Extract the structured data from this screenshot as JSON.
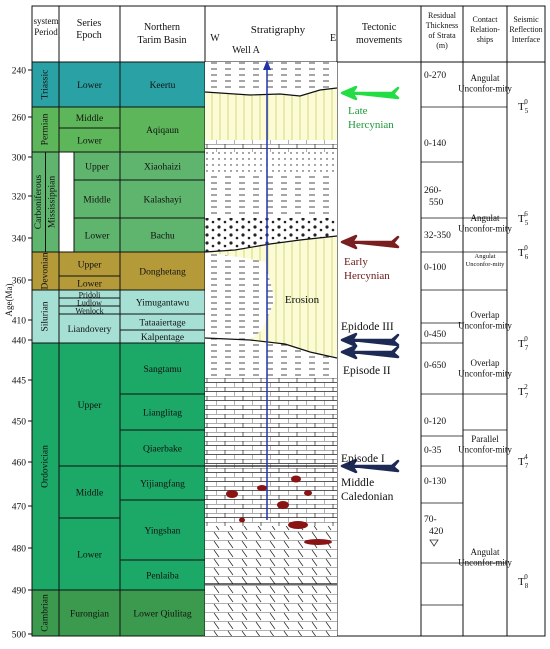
{
  "headers": {
    "system": "system Period",
    "series": "Series Epoch",
    "basin": "Northern Tarim Basin",
    "strat_title": "Stratigraphy",
    "strat_w": "W",
    "strat_e": "E",
    "well": "Well A",
    "tectonic": "Tectonic movements",
    "thickness": "Residual Thickness of Strata (m)",
    "contact": "Contact Relation-ships",
    "seismic": "Seismic Reflection Interface"
  },
  "age_axis": {
    "label": "Age(Ma)",
    "ticks": [
      "240",
      "260",
      "300",
      "320",
      "340",
      "360",
      "410",
      "440",
      "445",
      "450",
      "460",
      "470",
      "480",
      "490",
      "500"
    ]
  },
  "systems": [
    {
      "id": "triassic",
      "label": "Triassic",
      "color": "#2aa1a4"
    },
    {
      "id": "permian",
      "label": "Permian",
      "color": "#5eb65a"
    },
    {
      "id": "carboniferous",
      "label": "Carboniferous",
      "color": "#5fb56d"
    },
    {
      "id": "mississippian",
      "label": "Mississippian",
      "color": "#5fb56d"
    },
    {
      "id": "devonian",
      "label": "Devonian",
      "color": "#b59a39"
    },
    {
      "id": "silurian",
      "label": "Silurian",
      "color": "#a6dfd4"
    },
    {
      "id": "ordovician",
      "label": "Ordovician",
      "color": "#1ca867"
    },
    {
      "id": "cambrian",
      "label": "Cambrian",
      "color": "#3c9a4e"
    }
  ],
  "series": [
    "Lower",
    "Middle",
    "Lower",
    "Upper",
    "Middle",
    "Lower",
    "Upper",
    "Lower",
    "Pridoli",
    "Ludlow",
    "Wenlock",
    "Liandovery",
    "Upper",
    "Middle",
    "Lower",
    "Furongian"
  ],
  "formations": [
    "Keertu",
    "Aqiqaun",
    "Xiaohaizi",
    "Kalashayi",
    "Bachu",
    "Donghetang",
    "Yimugantawu",
    "Tataaiertage",
    "Kalpentage",
    "Sangtamu",
    "Lianglitag",
    "Qiaerbake",
    "Yijiangfang",
    "Yingshan",
    "Penlaiba",
    "Lower Qiulitag"
  ],
  "tectonic": {
    "late": "Late Hercynian",
    "early": "Early Hercynian",
    "ep3": "Epidode III",
    "ep2": "Episode II",
    "ep1": "Episode I",
    "midcal": "Middle Caledonian",
    "erosion": "Erosion"
  },
  "arrow_colors": {
    "late": "#22dd44",
    "early": "#7a1f1f",
    "episode": "#1c2a55"
  },
  "thickness": [
    "0-270",
    "0-140",
    "260-550",
    "32-350",
    "0-100",
    "0-450",
    "0-650",
    "0-120",
    "0-35",
    "0-130",
    "70-420"
  ],
  "contacts": [
    "Angulat Unconfor-mity",
    "Angulat Unconfor-mity",
    "Angulat Unconfor-mity",
    "Overlap Unconfor-mity",
    "Overlap Unconfor-mity",
    "Parallel Unconfor-mity",
    "Angulat Unconfor-mity"
  ],
  "seismic": [
    {
      "base": "T",
      "sub": "5",
      "sup": "0"
    },
    {
      "base": "T",
      "sub": "5",
      "sup": "6"
    },
    {
      "base": "T",
      "sub": "6",
      "sup": "0"
    },
    {
      "base": "T",
      "sub": "7",
      "sup": "0"
    },
    {
      "base": "T",
      "sub": "7",
      "sup": "2"
    },
    {
      "base": "T",
      "sub": "7",
      "sup": "4"
    },
    {
      "base": "T",
      "sub": "8",
      "sup": "0"
    }
  ]
}
